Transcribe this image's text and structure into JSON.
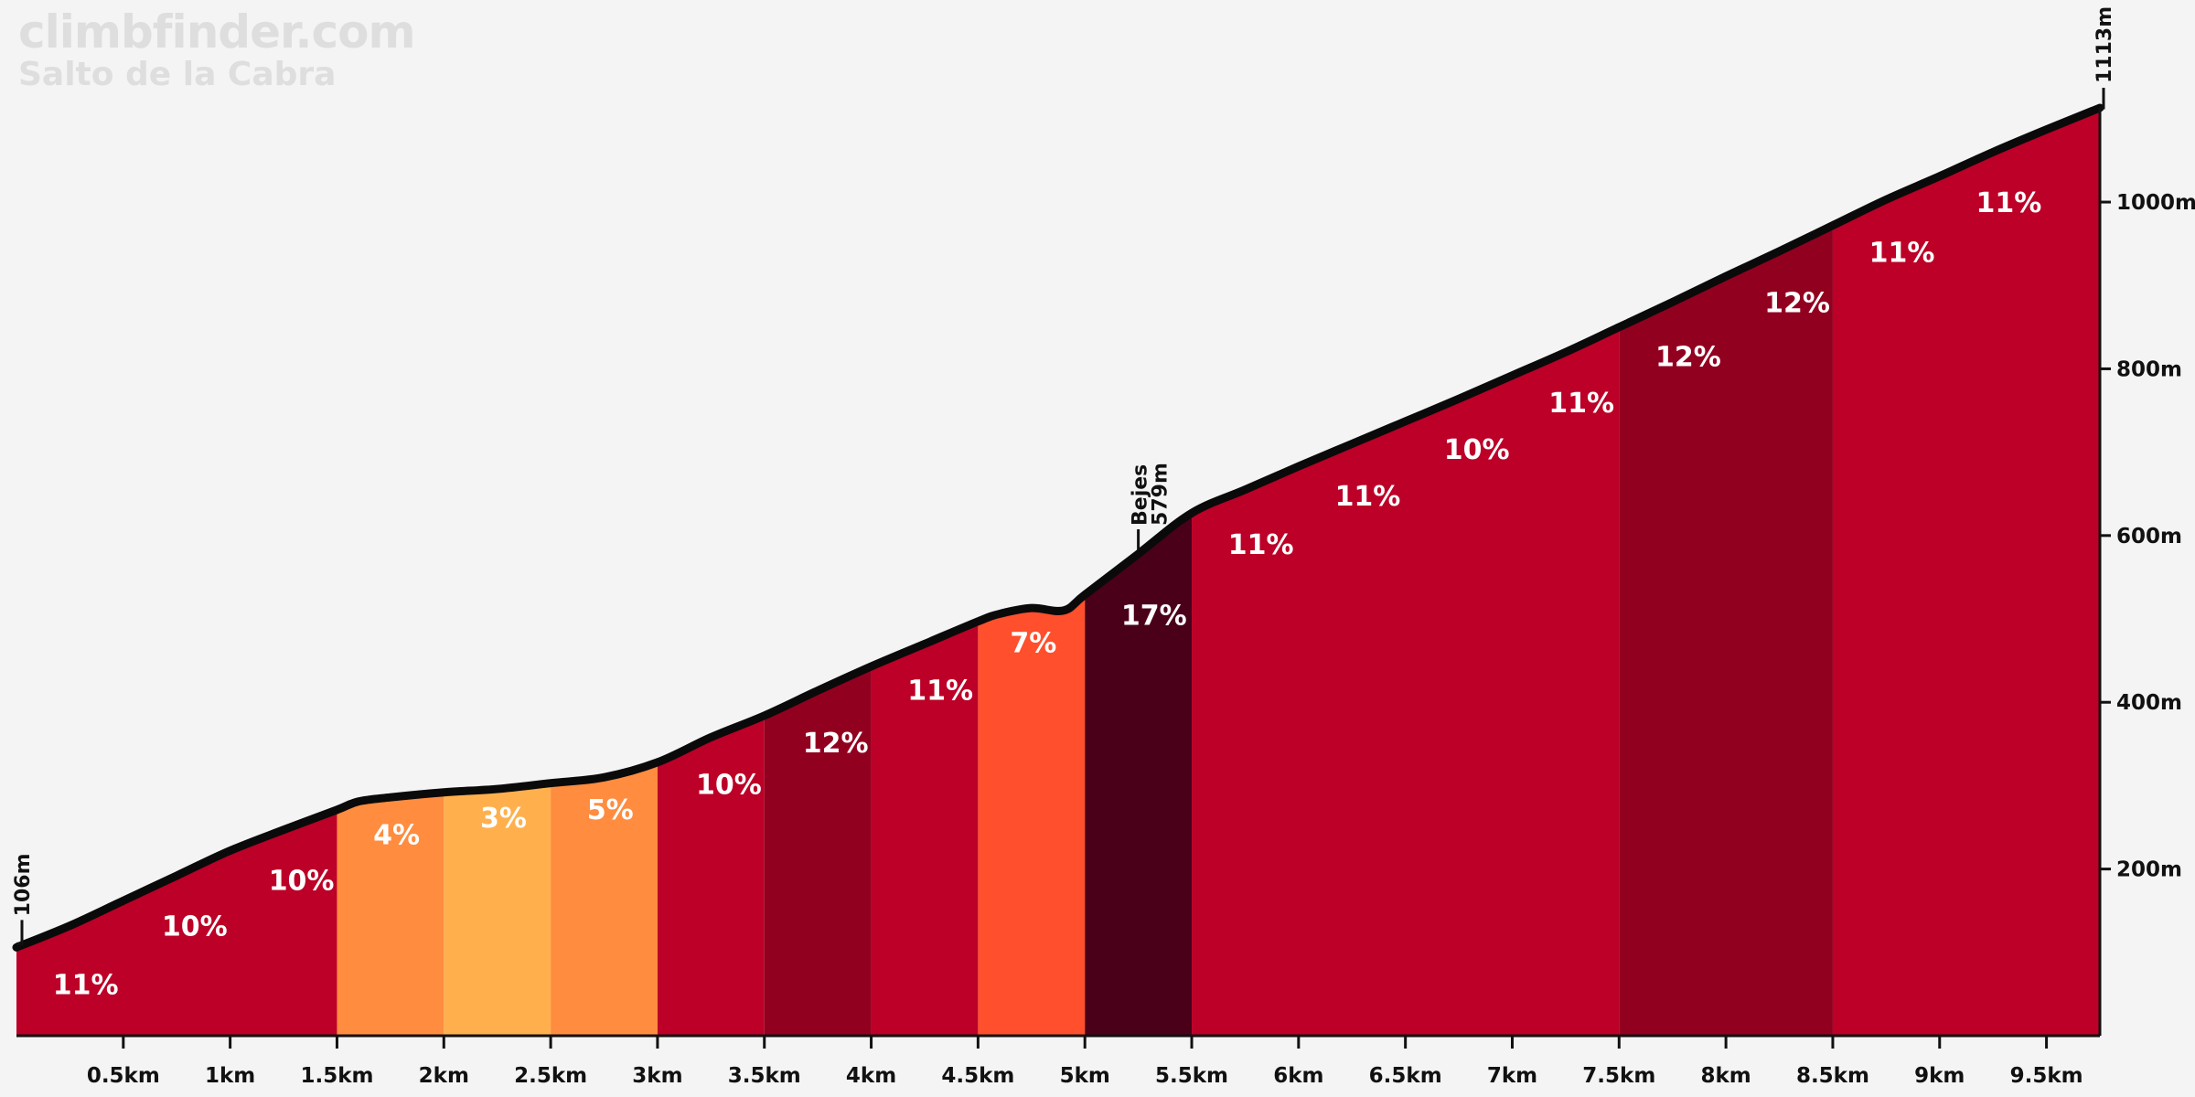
{
  "brand": {
    "site": "climbfinder.com",
    "climb_name": "Salto de la Cabra"
  },
  "chart_data": {
    "type": "area",
    "title": "Salto de la Cabra",
    "xlabel": "",
    "ylabel": "",
    "xlim_km": [
      0,
      9.75
    ],
    "ylim_m": [
      0,
      1113
    ],
    "x_ticks": [
      {
        "km": 0.5,
        "label": "0.5km"
      },
      {
        "km": 1,
        "label": "1km"
      },
      {
        "km": 1.5,
        "label": "1.5km"
      },
      {
        "km": 2,
        "label": "2km"
      },
      {
        "km": 2.5,
        "label": "2.5km"
      },
      {
        "km": 3,
        "label": "3km"
      },
      {
        "km": 3.5,
        "label": "3.5km"
      },
      {
        "km": 4,
        "label": "4km"
      },
      {
        "km": 4.5,
        "label": "4.5km"
      },
      {
        "km": 5,
        "label": "5km"
      },
      {
        "km": 5.5,
        "label": "5.5km"
      },
      {
        "km": 6,
        "label": "6km"
      },
      {
        "km": 6.5,
        "label": "6.5km"
      },
      {
        "km": 7,
        "label": "7km"
      },
      {
        "km": 7.5,
        "label": "7.5km"
      },
      {
        "km": 8,
        "label": "8km"
      },
      {
        "km": 8.5,
        "label": "8.5km"
      },
      {
        "km": 9,
        "label": "9km"
      },
      {
        "km": 9.5,
        "label": "9.5km"
      }
    ],
    "y_ticks": [
      {
        "m": 200,
        "label": "200m"
      },
      {
        "m": 400,
        "label": "400m"
      },
      {
        "m": 600,
        "label": "600m"
      },
      {
        "m": 800,
        "label": "800m"
      },
      {
        "m": 1000,
        "label": "1000m"
      }
    ],
    "profile_km": [
      0,
      0.25,
      0.5,
      0.75,
      1,
      1.25,
      1.5,
      1.6,
      1.75,
      2,
      2.25,
      2.5,
      2.75,
      3,
      3.25,
      3.5,
      3.75,
      4,
      4.25,
      4.5,
      4.6,
      4.75,
      4.9,
      5,
      5.25,
      5.5,
      5.75,
      6,
      6.25,
      6.5,
      6.75,
      7,
      7.25,
      7.5,
      7.75,
      8,
      8.25,
      8.5,
      8.75,
      9,
      9.25,
      9.5,
      9.75
    ],
    "profile_elevation_m": [
      106,
      132,
      162,
      192,
      222,
      247,
      271,
      281,
      286,
      292,
      296,
      303,
      310,
      328,
      358,
      384,
      414,
      443,
      470,
      497,
      506,
      513,
      510,
      529,
      578,
      627,
      655,
      683,
      710,
      737,
      764,
      792,
      820,
      850,
      880,
      911,
      941,
      972,
      1003,
      1031,
      1060,
      1087,
      1113
    ],
    "segments": [
      {
        "start_km": 0,
        "end_km": 1.5,
        "grade": "11%",
        "color": "#bc0027",
        "label_km": 0.17,
        "label_m": 50
      },
      {
        "start_km": 0,
        "end_km": 1.5,
        "grade": "10%",
        "color": "#bc0027",
        "label_km": 0.68,
        "label_m": 120
      },
      {
        "start_km": 0,
        "end_km": 1.5,
        "grade": "10%",
        "color": "#bc0027",
        "label_km": 1.18,
        "label_m": 175
      },
      {
        "start_km": 1.5,
        "end_km": 2,
        "grade": "4%",
        "color": "#ff8c3f",
        "label_km": 1.67,
        "label_m": 230
      },
      {
        "start_km": 2,
        "end_km": 2.5,
        "grade": "3%",
        "color": "#ffb04d",
        "label_km": 2.17,
        "label_m": 250
      },
      {
        "start_km": 2.5,
        "end_km": 3,
        "grade": "5%",
        "color": "#ff8c3f",
        "label_km": 2.67,
        "label_m": 260
      },
      {
        "start_km": 3,
        "end_km": 3.5,
        "grade": "10%",
        "color": "#bc0027",
        "label_km": 3.18,
        "label_m": 290
      },
      {
        "start_km": 3.5,
        "end_km": 4,
        "grade": "12%",
        "color": "#920020",
        "label_km": 3.68,
        "label_m": 340
      },
      {
        "start_km": 4,
        "end_km": 4.5,
        "grade": "11%",
        "color": "#bc0027",
        "label_km": 4.17,
        "label_m": 403
      },
      {
        "start_km": 4.5,
        "end_km": 5,
        "grade": "7%",
        "color": "#ff4f2c",
        "label_km": 4.65,
        "label_m": 460
      },
      {
        "start_km": 5,
        "end_km": 5.5,
        "grade": "17%",
        "color": "#4a0019",
        "label_km": 5.17,
        "label_m": 493
      },
      {
        "start_km": 5.5,
        "end_km": 7.5,
        "grade": "11%",
        "color": "#bc0027",
        "label_km": 5.67,
        "label_m": 578
      },
      {
        "start_km": 5.5,
        "end_km": 7.5,
        "grade": "11%",
        "color": "#bc0027",
        "label_km": 6.17,
        "label_m": 636
      },
      {
        "start_km": 5.5,
        "end_km": 7.5,
        "grade": "10%",
        "color": "#bc0027",
        "label_km": 6.68,
        "label_m": 692
      },
      {
        "start_km": 5.5,
        "end_km": 7.5,
        "grade": "11%",
        "color": "#bc0027",
        "label_km": 7.17,
        "label_m": 748
      },
      {
        "start_km": 7.5,
        "end_km": 8.5,
        "grade": "12%",
        "color": "#920020",
        "label_km": 7.67,
        "label_m": 803
      },
      {
        "start_km": 7.5,
        "end_km": 8.5,
        "grade": "12%",
        "color": "#920020",
        "label_km": 8.18,
        "label_m": 868
      },
      {
        "start_km": 8.5,
        "end_km": 9.75,
        "grade": "11%",
        "color": "#bc0027",
        "label_km": 8.67,
        "label_m": 928
      },
      {
        "start_km": 8.5,
        "end_km": 9.75,
        "grade": "11%",
        "color": "#bc0027",
        "label_km": 9.17,
        "label_m": 988
      }
    ],
    "annotations": [
      {
        "name": "start",
        "km": 0,
        "elevation_m": 106,
        "text": "106m"
      },
      {
        "name": "Bejes",
        "km": 5.25,
        "elevation_m": 579,
        "place": "Bejes",
        "text": "579m"
      },
      {
        "name": "summit",
        "km": 9.75,
        "elevation_m": 1113,
        "text": "1113m"
      }
    ]
  }
}
